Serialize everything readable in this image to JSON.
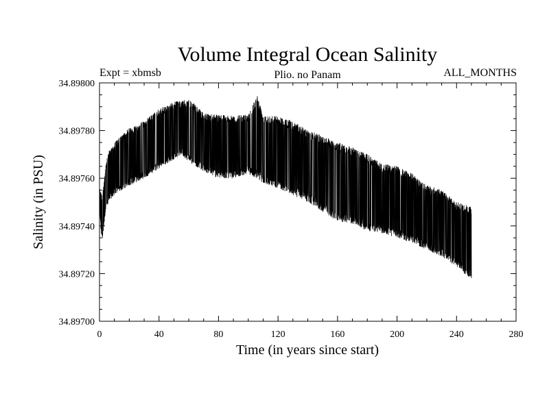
{
  "chart_data": {
    "type": "line",
    "title": "Volume Integral Ocean Salinity",
    "left_label": "Expt = xbmsb",
    "subtitle": "Plio. no Panam",
    "right_label": "ALL_MONTHS",
    "xlabel": "Time (in years since start)",
    "ylabel": "Salinity (in PSU)",
    "xlim": [
      0,
      280
    ],
    "ylim": [
      34.897,
      34.898
    ],
    "x_ticks": [
      0,
      40,
      80,
      120,
      160,
      200,
      240,
      280
    ],
    "x_tick_labels": [
      "0",
      "40",
      "80",
      "120",
      "160",
      "200",
      "240",
      "280"
    ],
    "y_ticks": [
      34.897,
      34.8972,
      34.8974,
      34.8976,
      34.8978,
      34.898
    ],
    "y_tick_labels": [
      "34.89700",
      "34.89720",
      "34.89740",
      "34.89760",
      "34.89780",
      "34.89800"
    ],
    "grid": false,
    "series": [
      {
        "color": "#000000",
        "x_step": 1,
        "upper_envelope": [
          [
            0,
            34.89757
          ],
          [
            2,
            34.89752
          ],
          [
            4,
            34.89765
          ],
          [
            6,
            34.89771
          ],
          [
            10,
            34.89775
          ],
          [
            20,
            34.89781
          ],
          [
            30,
            34.89784
          ],
          [
            40,
            34.89789
          ],
          [
            50,
            34.89792
          ],
          [
            60,
            34.89793
          ],
          [
            66,
            34.8979
          ],
          [
            70,
            34.89787
          ],
          [
            80,
            34.89787
          ],
          [
            90,
            34.89786
          ],
          [
            100,
            34.89787
          ],
          [
            106,
            34.89795
          ],
          [
            110,
            34.89787
          ],
          [
            120,
            34.89786
          ],
          [
            130,
            34.89784
          ],
          [
            140,
            34.8978
          ],
          [
            150,
            34.89778
          ],
          [
            160,
            34.89775
          ],
          [
            170,
            34.89773
          ],
          [
            180,
            34.8977
          ],
          [
            190,
            34.89766
          ],
          [
            200,
            34.89765
          ],
          [
            210,
            34.89762
          ],
          [
            220,
            34.89757
          ],
          [
            230,
            34.89755
          ],
          [
            240,
            34.8975
          ],
          [
            250,
            34.89748
          ]
        ],
        "lower_envelope": [
          [
            0,
            34.8975
          ],
          [
            1,
            34.89737
          ],
          [
            2,
            34.89735
          ],
          [
            4,
            34.89745
          ],
          [
            6,
            34.8975
          ],
          [
            10,
            34.89753
          ],
          [
            20,
            34.89757
          ],
          [
            30,
            34.8976
          ],
          [
            40,
            34.89764
          ],
          [
            50,
            34.89768
          ],
          [
            55,
            34.8977
          ],
          [
            60,
            34.89767
          ],
          [
            70,
            34.89763
          ],
          [
            80,
            34.8976
          ],
          [
            90,
            34.8976
          ],
          [
            100,
            34.89762
          ],
          [
            110,
            34.89758
          ],
          [
            120,
            34.89756
          ],
          [
            130,
            34.89753
          ],
          [
            140,
            34.8975
          ],
          [
            150,
            34.89746
          ],
          [
            160,
            34.89742
          ],
          [
            170,
            34.89741
          ],
          [
            180,
            34.89738
          ],
          [
            190,
            34.89737
          ],
          [
            200,
            34.89735
          ],
          [
            210,
            34.89733
          ],
          [
            220,
            34.8973
          ],
          [
            230,
            34.89727
          ],
          [
            240,
            34.89723
          ],
          [
            245,
            34.8972
          ],
          [
            250,
            34.89718
          ]
        ]
      }
    ]
  }
}
